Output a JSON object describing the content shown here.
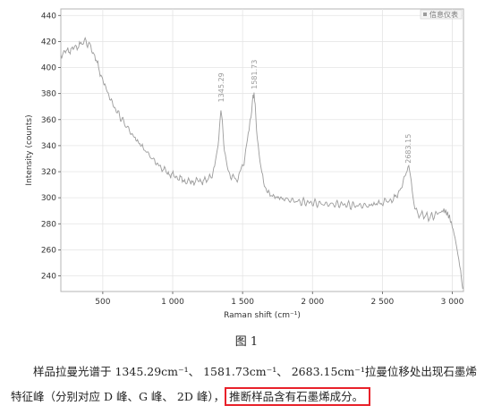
{
  "chart_data": {
    "type": "line",
    "xlabel": "Raman shift (cm⁻¹)",
    "ylabel": "Intensity (counts)",
    "xlim": [
      200,
      3080
    ],
    "ylim": [
      228,
      445
    ],
    "xticks": [
      500,
      1000,
      1500,
      2000,
      2500,
      3000
    ],
    "xtick_labels": [
      "500",
      "1 000",
      "1 500",
      "2 000",
      "2 500",
      "3 000"
    ],
    "yticks": [
      240,
      260,
      280,
      300,
      320,
      340,
      360,
      380,
      400,
      420,
      440
    ],
    "ytick_labels": [
      "240",
      "260",
      "280",
      "300",
      "320",
      "340",
      "360",
      "380",
      "400",
      "420",
      "440"
    ],
    "grid": true,
    "legend": {
      "position": "top-right",
      "label": "信息仪表"
    },
    "peak_labels": [
      {
        "x": 1345.29,
        "y": 372,
        "text": "1345.29"
      },
      {
        "x": 1581.73,
        "y": 382,
        "text": "1581.73"
      },
      {
        "x": 2683.15,
        "y": 325,
        "text": "2683.15"
      }
    ],
    "series": [
      {
        "color": "#9c9c9c",
        "x": [
          200,
          250,
          300,
          350,
          380,
          420,
          470,
          520,
          580,
          650,
          720,
          800,
          870,
          930,
          980,
          1030,
          1080,
          1130,
          1180,
          1230,
          1270,
          1300,
          1320,
          1335,
          1345,
          1355,
          1370,
          1390,
          1420,
          1450,
          1480,
          1510,
          1540,
          1560,
          1575,
          1582,
          1590,
          1605,
          1625,
          1650,
          1680,
          1720,
          1800,
          1900,
          2000,
          2100,
          2200,
          2300,
          2400,
          2480,
          2540,
          2590,
          2630,
          2660,
          2683,
          2700,
          2720,
          2750,
          2790,
          2830,
          2870,
          2900,
          2920,
          2940,
          2960,
          2980,
          3000,
          3020,
          3040,
          3060,
          3075
        ],
        "y": [
          410,
          413,
          415,
          419,
          420,
          415,
          400,
          384,
          370,
          358,
          347,
          337,
          328,
          322,
          318,
          316,
          313,
          312,
          313,
          313,
          316,
          323,
          336,
          354,
          368,
          356,
          336,
          323,
          316,
          314,
          318,
          328,
          348,
          364,
          377,
          381,
          370,
          346,
          326,
          312,
          304,
          301,
          299,
          297,
          296,
          295,
          295,
          294,
          294,
          296,
          297,
          300,
          306,
          316,
          324,
          318,
          300,
          287,
          287,
          285,
          286,
          288,
          290,
          292,
          290,
          286,
          278,
          268,
          255,
          242,
          230
        ]
      }
    ]
  },
  "caption": "图 1",
  "paragraph": {
    "line1": "样品拉曼光谱于 1345.29cm⁻¹、 1581.73cm⁻¹、 2683.15cm⁻¹拉曼位移处出现石墨烯",
    "line2_plain": "特征峰（分别对应 D 峰、G 峰、 2D 峰），",
    "line2_highlight": "推断样品含有石墨烯成分。"
  }
}
